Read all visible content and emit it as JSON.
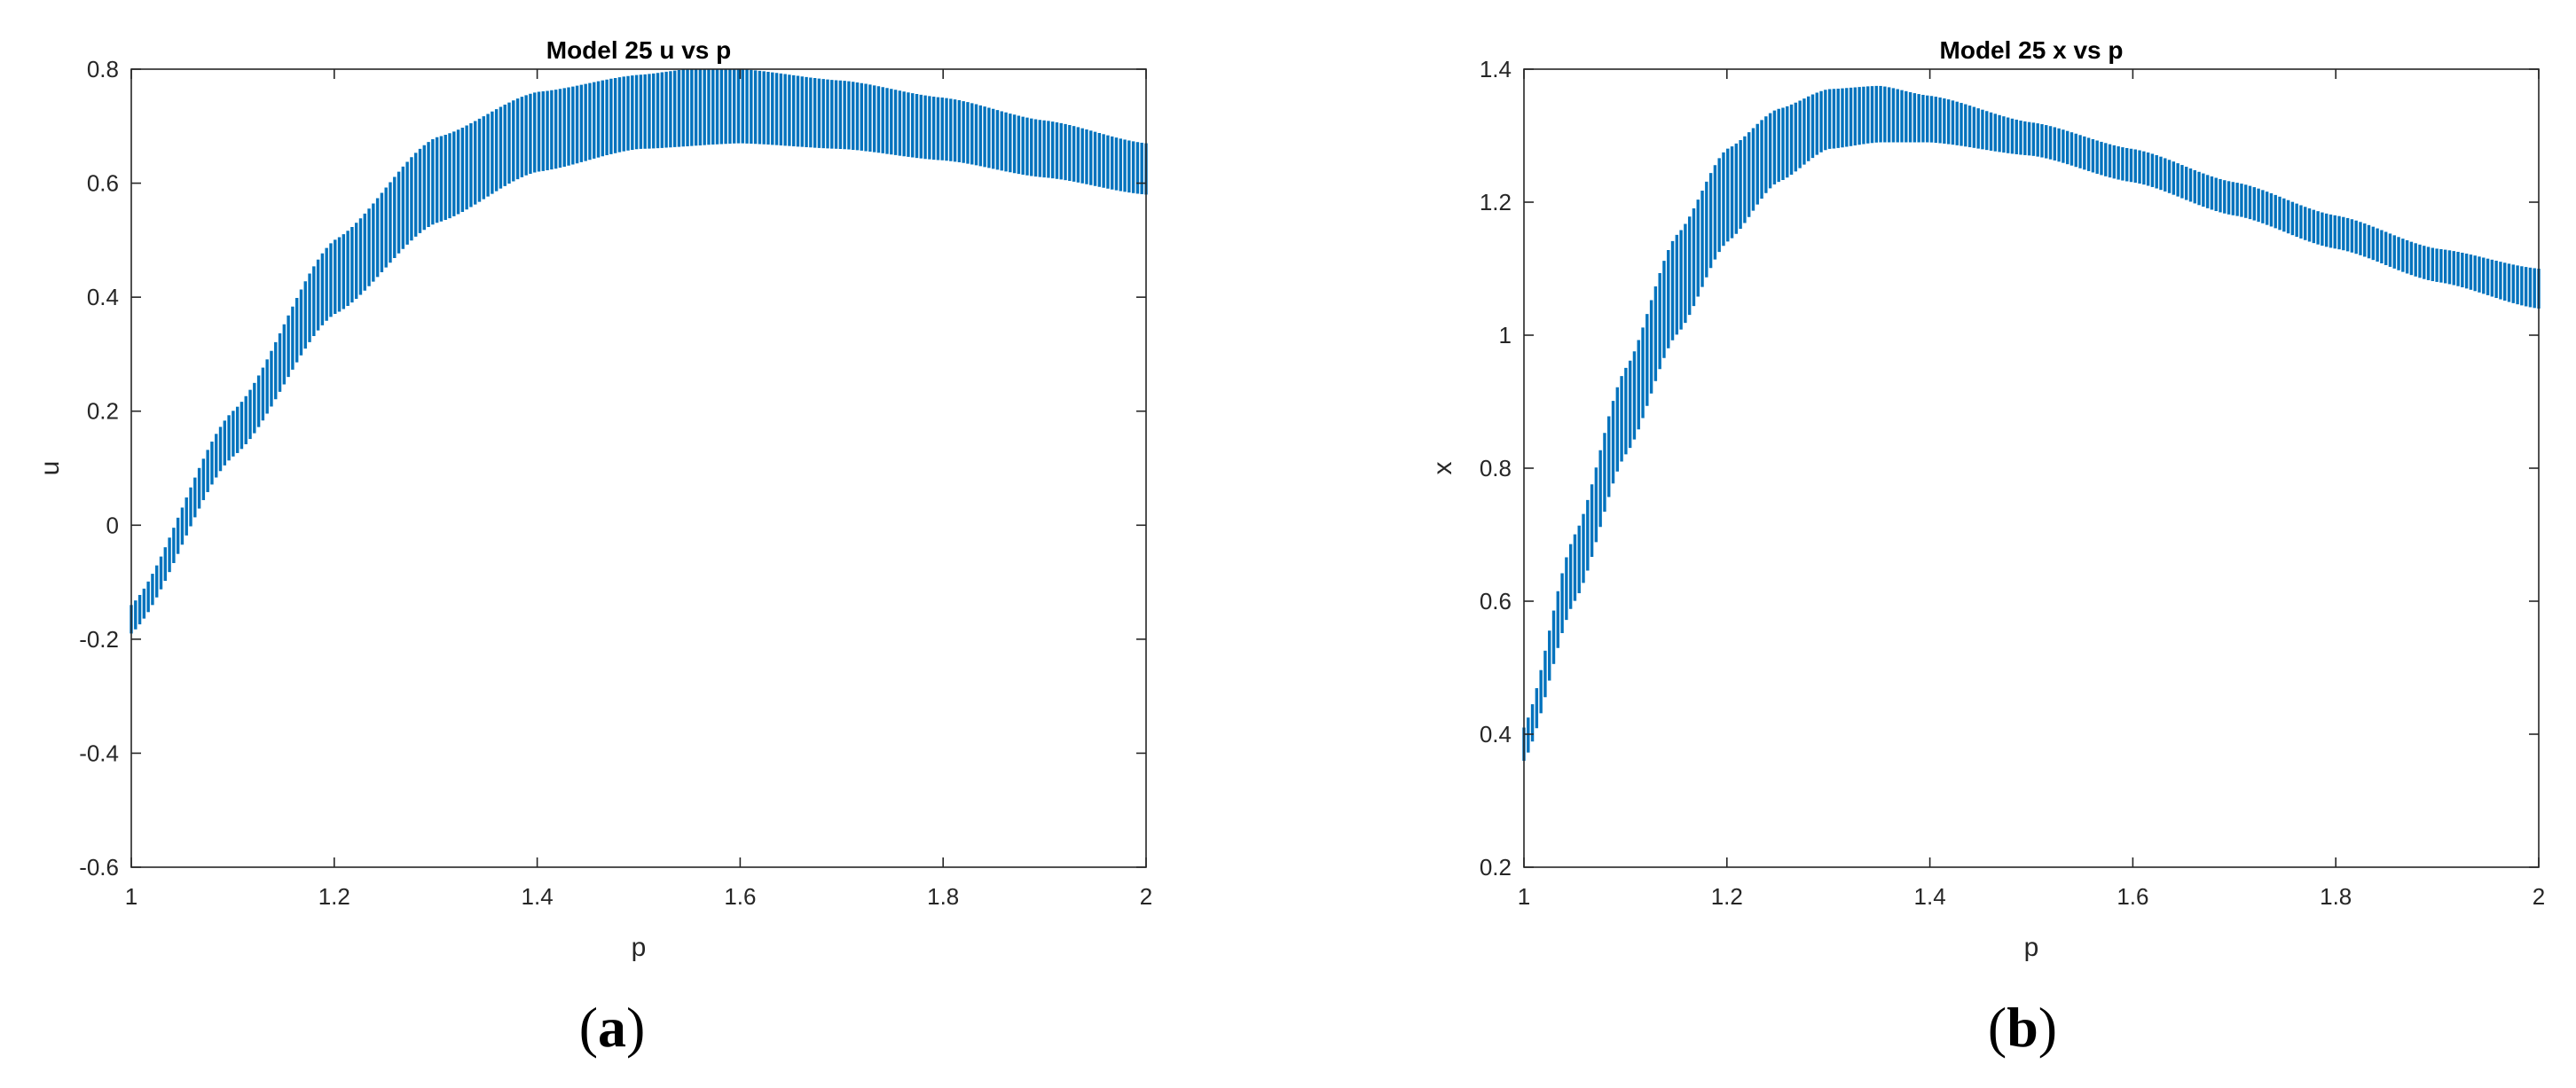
{
  "chart_data": [
    {
      "type": "interval",
      "panel": "a",
      "caption_prefix": "(",
      "caption_letter": "a",
      "caption_suffix": ")",
      "title": "Model 25 u vs p",
      "xlabel": "p",
      "ylabel": "u",
      "xlim": [
        1,
        2
      ],
      "ylim": [
        -0.6,
        0.8
      ],
      "xticks": [
        "1",
        "1.2",
        "1.4",
        "1.6",
        "1.8",
        "2"
      ],
      "yticks": [
        "-0.6",
        "-0.4",
        "-0.2",
        "0",
        "0.2",
        "0.4",
        "0.6",
        "0.8"
      ],
      "grid": false,
      "series_color": "#0072BD",
      "interval_count": 240,
      "upper_points": [
        [
          1.0,
          -0.14
        ],
        [
          1.1,
          0.2
        ],
        [
          1.2,
          0.5
        ],
        [
          1.3,
          0.68
        ],
        [
          1.4,
          0.76
        ],
        [
          1.5,
          0.79
        ],
        [
          1.55,
          0.8
        ],
        [
          1.6,
          0.8
        ],
        [
          1.7,
          0.78
        ],
        [
          1.8,
          0.75
        ],
        [
          1.9,
          0.71
        ],
        [
          2.0,
          0.67
        ]
      ],
      "lower_points": [
        [
          1.0,
          -0.19
        ],
        [
          1.1,
          0.12
        ],
        [
          1.2,
          0.37
        ],
        [
          1.3,
          0.53
        ],
        [
          1.4,
          0.62
        ],
        [
          1.5,
          0.66
        ],
        [
          1.6,
          0.67
        ],
        [
          1.7,
          0.66
        ],
        [
          1.8,
          0.64
        ],
        [
          1.9,
          0.61
        ],
        [
          2.0,
          0.58
        ]
      ]
    },
    {
      "type": "interval",
      "panel": "b",
      "caption_prefix": "(",
      "caption_letter": "b",
      "caption_suffix": ")",
      "title": "Model 25 x vs p",
      "xlabel": "p",
      "ylabel": "x",
      "xlim": [
        1,
        2
      ],
      "ylim": [
        0.2,
        1.4
      ],
      "xticks": [
        "1",
        "1.2",
        "1.4",
        "1.6",
        "1.8",
        "2"
      ],
      "yticks": [
        "0.2",
        "0.4",
        "0.6",
        "0.8",
        "1",
        "1.2",
        "1.4"
      ],
      "grid": false,
      "series_color": "#0072BD",
      "interval_count": 240,
      "upper_points": [
        [
          1.0,
          0.41
        ],
        [
          1.05,
          0.7
        ],
        [
          1.1,
          0.95
        ],
        [
          1.15,
          1.15
        ],
        [
          1.2,
          1.28
        ],
        [
          1.25,
          1.34
        ],
        [
          1.3,
          1.37
        ],
        [
          1.35,
          1.375
        ],
        [
          1.4,
          1.36
        ],
        [
          1.5,
          1.32
        ],
        [
          1.6,
          1.28
        ],
        [
          1.7,
          1.23
        ],
        [
          1.8,
          1.18
        ],
        [
          1.9,
          1.13
        ],
        [
          2.0,
          1.1
        ]
      ],
      "lower_points": [
        [
          1.0,
          0.36
        ],
        [
          1.05,
          0.6
        ],
        [
          1.1,
          0.82
        ],
        [
          1.15,
          1.0
        ],
        [
          1.2,
          1.14
        ],
        [
          1.25,
          1.23
        ],
        [
          1.3,
          1.28
        ],
        [
          1.35,
          1.29
        ],
        [
          1.4,
          1.29
        ],
        [
          1.5,
          1.27
        ],
        [
          1.6,
          1.23
        ],
        [
          1.7,
          1.18
        ],
        [
          1.8,
          1.13
        ],
        [
          1.9,
          1.08
        ],
        [
          2.0,
          1.04
        ]
      ]
    }
  ]
}
